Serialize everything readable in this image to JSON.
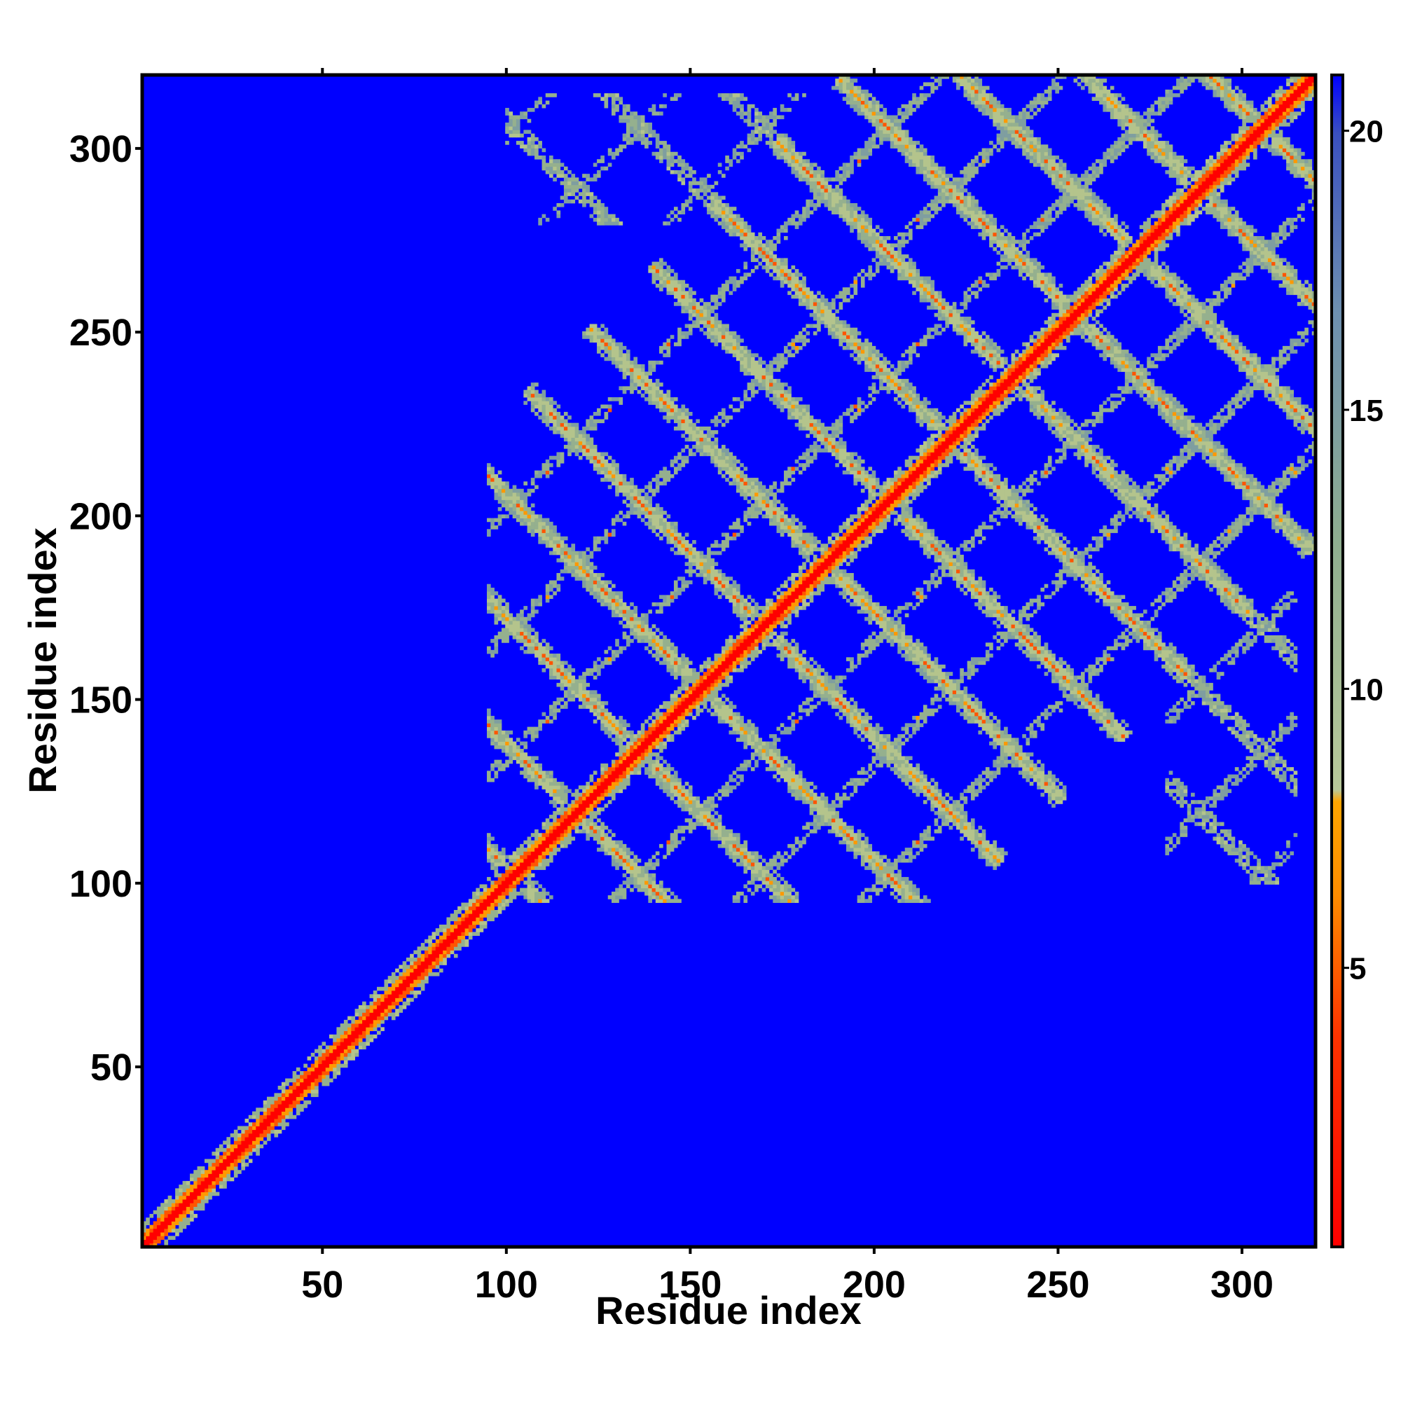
{
  "chart_data": {
    "type": "heatmap",
    "title": "",
    "xlabel": "Residue index",
    "ylabel": "Residue index",
    "xlim": [
      1,
      320
    ],
    "ylim": [
      1,
      320
    ],
    "x_ticks": [
      50,
      100,
      150,
      200,
      250,
      300
    ],
    "y_ticks": [
      50,
      100,
      150,
      200,
      250,
      300
    ],
    "n_residues": 320,
    "colorbar": {
      "range": [
        0,
        21
      ],
      "ticks": [
        5,
        10,
        15,
        20
      ],
      "colors": [
        "#ff0000",
        "#ff8c00",
        "#9fbf8f",
        "#4f6fb0",
        "#0000ff"
      ]
    },
    "background_color": "#0000ff",
    "diagonal_color": "#ff0000",
    "contact_bands": [
      {
        "from": 100,
        "to": 270,
        "description": "antiparallel cross pattern between residues 100-270"
      },
      {
        "from": 100,
        "to": 320,
        "description": "off-diagonal repeat contacts with residues 280-310"
      }
    ]
  }
}
